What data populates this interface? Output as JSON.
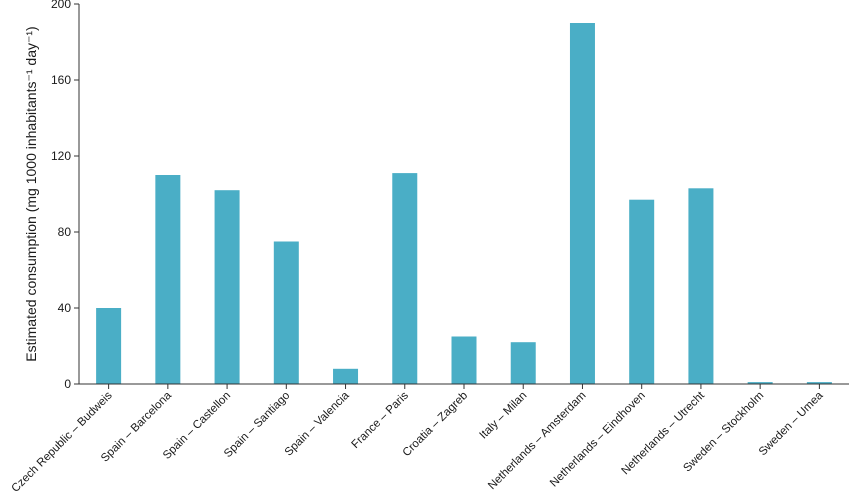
{
  "chart_data": {
    "type": "bar",
    "title": "",
    "xlabel": "",
    "ylabel": "Estimated consumption (mg 1000 inhabitants⁻¹ day⁻¹)",
    "ylim": [
      0,
      200
    ],
    "yticks": [
      0,
      40,
      80,
      120,
      160,
      200
    ],
    "grid": false,
    "bar_color": "#4aaec6",
    "categories": [
      "Czech Republic – Budweis",
      "Spain – Barcelona",
      "Spain – Castellon",
      "Spain – Santiago",
      "Spain – Valencia",
      "France – Paris",
      "Croatia – Zagreb",
      "Italy – Milan",
      "Netherlands – Amsterdam",
      "Netherlands – Eindhoven",
      "Netherlands – Utrecht",
      "Sweden – Stockholm",
      "Sweden – Umea"
    ],
    "values": [
      40,
      110,
      102,
      75,
      8,
      111,
      25,
      22,
      190,
      97,
      103,
      1,
      1
    ]
  }
}
